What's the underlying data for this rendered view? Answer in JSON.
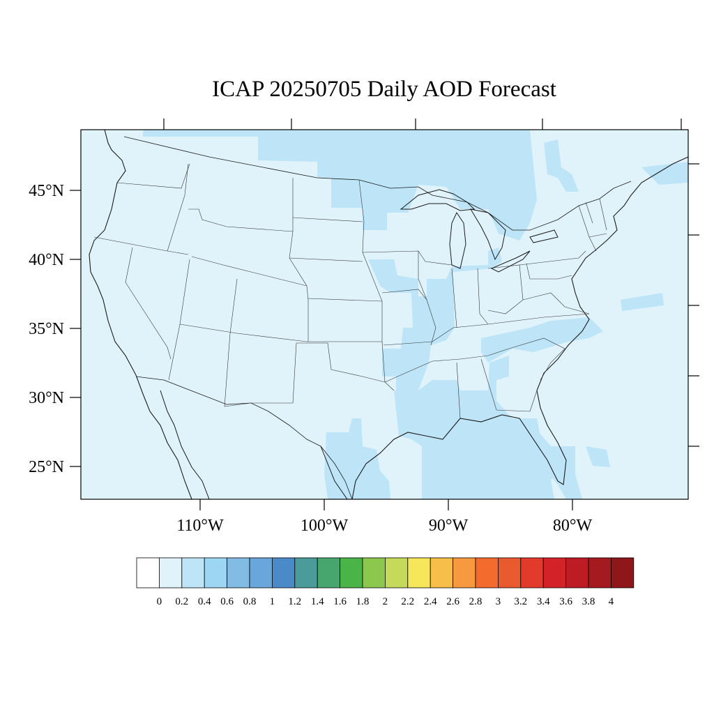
{
  "title": "ICAP 20250705 Daily AOD Forecast",
  "map": {
    "lat_labels": [
      "45°N",
      "40°N",
      "35°N",
      "30°N",
      "25°N"
    ],
    "lon_labels": [
      "110°W",
      "100°W",
      "90°W",
      "80°W"
    ],
    "region": "Contiguous United States",
    "ocean_color": "#e0f3fb",
    "aod_field": [
      {
        "area": "Background (land and ocean)",
        "range": "0.2-0.4",
        "color": "#e0f3fb"
      },
      {
        "area": "Northern plains and Great Lakes",
        "range": "0.4-0.6",
        "color": "#bde5f7"
      },
      {
        "area": "Mississippi valley and Gulf Coast",
        "range": "0.4-0.6",
        "color": "#bde5f7"
      },
      {
        "area": "South Texas",
        "range": "0.4-0.6",
        "color": "#bde5f7"
      },
      {
        "area": "Florida and Bahamas",
        "range": "0.4-0.6",
        "color": "#bde5f7"
      },
      {
        "area": "Western Atlantic",
        "range": "0.4-0.6",
        "color": "#bde5f7"
      }
    ]
  },
  "colorbar": {
    "labels": [
      "0",
      "0.2",
      "0.4",
      "0.6",
      "0.8",
      "1",
      "1.2",
      "1.4",
      "1.6",
      "1.8",
      "2",
      "2.2",
      "2.4",
      "2.6",
      "2.8",
      "3",
      "3.2",
      "3.4",
      "3.6",
      "3.8",
      "4"
    ],
    "colors": [
      "#ffffff",
      "#e0f3fb",
      "#bde5f7",
      "#9dd6f3",
      "#82bce4",
      "#68a6dc",
      "#4b8ac8",
      "#4a9b9a",
      "#47a66e",
      "#4ab448",
      "#8cc84e",
      "#c5d95a",
      "#f6e75a",
      "#f8be4a",
      "#f79a3f",
      "#f36c2e",
      "#e95a2f",
      "#e23a2b",
      "#d42328",
      "#bd1c24",
      "#a41a1f",
      "#8f1619"
    ]
  }
}
